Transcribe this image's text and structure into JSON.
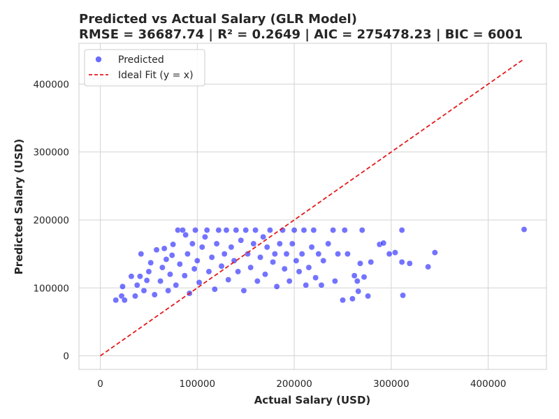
{
  "chart_data": {
    "type": "scatter",
    "title": "Predicted vs Actual Salary (GLR Model)",
    "subtitle": "RMSE = 36687.74 | R² = 0.2649 | AIC = 275478.23 | BIC = 6001",
    "xlabel": "Actual Salary (USD)",
    "ylabel": "Predicted Salary (USD)",
    "xlim": [
      -22000,
      460000
    ],
    "ylim": [
      -20000,
      460000
    ],
    "x_ticks": [
      0,
      100000,
      200000,
      300000,
      400000
    ],
    "y_ticks": [
      0,
      100000,
      200000,
      300000,
      400000
    ],
    "x_tick_labels": [
      "0",
      "100000",
      "200000",
      "300000",
      "400000"
    ],
    "y_tick_labels": [
      "0",
      "100000",
      "200000",
      "300000",
      "400000"
    ],
    "grid": true,
    "legend_position": "top-left",
    "colors": {
      "points": "#0000ff",
      "ideal_line": "#e41a1c",
      "grid": "#d3d3d3",
      "axes": "#cccccc"
    },
    "series": [
      {
        "name": "Predicted",
        "kind": "scatter",
        "color": "#0000ff",
        "points": [
          [
            16000,
            82000
          ],
          [
            22000,
            88000
          ],
          [
            23000,
            102000
          ],
          [
            25000,
            82000
          ],
          [
            32000,
            117000
          ],
          [
            36000,
            88000
          ],
          [
            38000,
            104000
          ],
          [
            41000,
            117000
          ],
          [
            42000,
            150000
          ],
          [
            45000,
            96000
          ],
          [
            48000,
            111000
          ],
          [
            50000,
            124000
          ],
          [
            52000,
            137000
          ],
          [
            56000,
            90000
          ],
          [
            58000,
            156000
          ],
          [
            62000,
            110000
          ],
          [
            64000,
            130000
          ],
          [
            66000,
            158000
          ],
          [
            68000,
            142000
          ],
          [
            70000,
            96000
          ],
          [
            72000,
            120000
          ],
          [
            74000,
            148000
          ],
          [
            75000,
            164000
          ],
          [
            78000,
            104000
          ],
          [
            80000,
            185000
          ],
          [
            82000,
            135000
          ],
          [
            85000,
            185000
          ],
          [
            87000,
            118000
          ],
          [
            88000,
            178000
          ],
          [
            90000,
            150000
          ],
          [
            92000,
            92000
          ],
          [
            95000,
            165000
          ],
          [
            97000,
            128000
          ],
          [
            98000,
            185000
          ],
          [
            100000,
            140000
          ],
          [
            102000,
            108000
          ],
          [
            105000,
            160000
          ],
          [
            108000,
            175000
          ],
          [
            110000,
            185000
          ],
          [
            112000,
            124000
          ],
          [
            115000,
            145000
          ],
          [
            118000,
            98000
          ],
          [
            120000,
            165000
          ],
          [
            122000,
            185000
          ],
          [
            125000,
            132000
          ],
          [
            128000,
            150000
          ],
          [
            130000,
            185000
          ],
          [
            132000,
            112000
          ],
          [
            135000,
            160000
          ],
          [
            138000,
            140000
          ],
          [
            140000,
            185000
          ],
          [
            142000,
            124000
          ],
          [
            145000,
            170000
          ],
          [
            148000,
            96000
          ],
          [
            150000,
            185000
          ],
          [
            152000,
            150000
          ],
          [
            155000,
            130000
          ],
          [
            158000,
            165000
          ],
          [
            160000,
            185000
          ],
          [
            162000,
            110000
          ],
          [
            165000,
            145000
          ],
          [
            168000,
            175000
          ],
          [
            170000,
            120000
          ],
          [
            172000,
            160000
          ],
          [
            175000,
            185000
          ],
          [
            178000,
            138000
          ],
          [
            180000,
            150000
          ],
          [
            182000,
            102000
          ],
          [
            185000,
            165000
          ],
          [
            188000,
            185000
          ],
          [
            190000,
            128000
          ],
          [
            192000,
            150000
          ],
          [
            195000,
            110000
          ],
          [
            198000,
            165000
          ],
          [
            200000,
            185000
          ],
          [
            202000,
            140000
          ],
          [
            205000,
            124000
          ],
          [
            208000,
            150000
          ],
          [
            210000,
            185000
          ],
          [
            212000,
            104000
          ],
          [
            215000,
            130000
          ],
          [
            218000,
            160000
          ],
          [
            220000,
            185000
          ],
          [
            222000,
            115000
          ],
          [
            225000,
            150000
          ],
          [
            228000,
            104000
          ],
          [
            230000,
            140000
          ],
          [
            235000,
            165000
          ],
          [
            240000,
            185000
          ],
          [
            242000,
            110000
          ],
          [
            245000,
            150000
          ],
          [
            250000,
            82000
          ],
          [
            252000,
            185000
          ],
          [
            255000,
            150000
          ],
          [
            260000,
            84000
          ],
          [
            262000,
            118000
          ],
          [
            265000,
            110000
          ],
          [
            266000,
            95000
          ],
          [
            268000,
            136000
          ],
          [
            270000,
            185000
          ],
          [
            272000,
            116000
          ],
          [
            276000,
            88000
          ],
          [
            279000,
            138000
          ],
          [
            288000,
            164000
          ],
          [
            292000,
            166000
          ],
          [
            298000,
            150000
          ],
          [
            304000,
            152000
          ],
          [
            311000,
            185000
          ],
          [
            311000,
            138000
          ],
          [
            312000,
            89000
          ],
          [
            319000,
            136000
          ],
          [
            338000,
            131000
          ],
          [
            345000,
            152000
          ],
          [
            437000,
            186000
          ]
        ]
      },
      {
        "name": "Ideal Fit (y = x)",
        "kind": "line",
        "style": "dashed",
        "color": "#e41a1c",
        "x": [
          0,
          437000
        ],
        "y": [
          0,
          437000
        ]
      }
    ]
  }
}
